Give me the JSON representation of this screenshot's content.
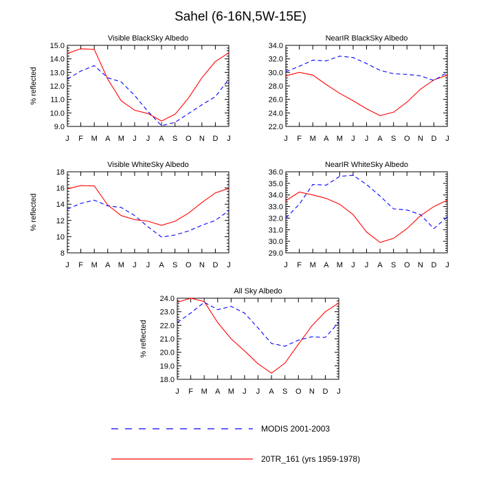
{
  "figure_title": "Sahel (6-16N,5W-15E)",
  "months": [
    "J",
    "F",
    "M",
    "A",
    "M",
    "J",
    "J",
    "A",
    "S",
    "O",
    "N",
    "D",
    "J"
  ],
  "ylabel": "% reflected",
  "colors": {
    "model": "#ff0000",
    "modis": "#0000ff"
  },
  "legend": [
    {
      "label": "MODIS 2001-2003",
      "style": "dashed",
      "color": "#0000ff"
    },
    {
      "label": "20TR_161 (yrs 1959-1978)",
      "style": "solid",
      "color": "#ff0000"
    }
  ],
  "chart_data": [
    {
      "type": "line",
      "title": "Visible BlackSky Albedo",
      "ylabel": "% reflected",
      "ylim": [
        9.0,
        15.0
      ],
      "yticks": [
        "9.0",
        "10.0",
        "11.0",
        "12.0",
        "13.0",
        "14.0",
        "15.0"
      ],
      "ytick_values": [
        9,
        10,
        11,
        12,
        13,
        14,
        15
      ],
      "x": [
        "J",
        "F",
        "M",
        "A",
        "M",
        "J",
        "J",
        "A",
        "S",
        "O",
        "N",
        "D",
        "J"
      ],
      "series": [
        {
          "name": "20TR_161 (yrs 1959-1978)",
          "style": "solid",
          "values": [
            14.4,
            14.75,
            14.7,
            12.5,
            10.9,
            10.2,
            9.95,
            9.4,
            9.9,
            11.1,
            12.6,
            13.8,
            14.45
          ]
        },
        {
          "name": "MODIS 2001-2003",
          "style": "dashed",
          "values": [
            12.5,
            13.1,
            13.5,
            12.6,
            12.3,
            11.3,
            10.1,
            9.05,
            9.3,
            9.95,
            10.6,
            11.2,
            12.5
          ]
        }
      ]
    },
    {
      "type": "line",
      "title": "NearIR BlackSky Albedo",
      "ylabel": "",
      "ylim": [
        22.0,
        34.0
      ],
      "yticks": [
        "22.0",
        "24.0",
        "26.0",
        "28.0",
        "30.0",
        "32.0",
        "34.0"
      ],
      "ytick_values": [
        22,
        24,
        26,
        28,
        30,
        32,
        34
      ],
      "x": [
        "J",
        "F",
        "M",
        "A",
        "M",
        "J",
        "J",
        "A",
        "S",
        "O",
        "N",
        "D",
        "J"
      ],
      "series": [
        {
          "name": "20TR_161 (yrs 1959-1978)",
          "style": "solid",
          "values": [
            29.5,
            30.0,
            29.6,
            28.2,
            26.9,
            25.8,
            24.6,
            23.6,
            24.1,
            25.6,
            27.5,
            28.9,
            29.6
          ]
        },
        {
          "name": "MODIS 2001-2003",
          "style": "dashed",
          "values": [
            30.1,
            30.9,
            31.8,
            31.7,
            32.4,
            32.2,
            31.3,
            30.3,
            29.8,
            29.7,
            29.5,
            28.8,
            30.0
          ]
        }
      ]
    },
    {
      "type": "line",
      "title": "Visible WhiteSky Albedo",
      "ylabel": "% reflected",
      "ylim": [
        8,
        18
      ],
      "yticks": [
        "8",
        "10",
        "12",
        "14",
        "16",
        "18"
      ],
      "ytick_values": [
        8,
        10,
        12,
        14,
        16,
        18
      ],
      "x": [
        "J",
        "F",
        "M",
        "A",
        "M",
        "J",
        "J",
        "A",
        "S",
        "O",
        "N",
        "D",
        "J"
      ],
      "series": [
        {
          "name": "20TR_161 (yrs 1959-1978)",
          "style": "solid",
          "values": [
            15.9,
            16.3,
            16.25,
            13.9,
            12.6,
            12.1,
            11.9,
            11.4,
            11.9,
            12.9,
            14.2,
            15.4,
            15.95
          ]
        },
        {
          "name": "MODIS 2001-2003",
          "style": "dashed",
          "values": [
            13.4,
            14.1,
            14.5,
            13.8,
            13.6,
            12.6,
            11.2,
            9.95,
            10.2,
            10.7,
            11.4,
            12.0,
            13.2
          ]
        }
      ]
    },
    {
      "type": "line",
      "title": "NearIR WhiteSky Albedo",
      "ylabel": "",
      "ylim": [
        29.0,
        36.0
      ],
      "yticks": [
        "29.0",
        "30.0",
        "31.0",
        "32.0",
        "33.0",
        "34.0",
        "35.0",
        "36.0"
      ],
      "ytick_values": [
        29,
        30,
        31,
        32,
        33,
        34,
        35,
        36
      ],
      "x": [
        "J",
        "F",
        "M",
        "A",
        "M",
        "J",
        "J",
        "A",
        "S",
        "O",
        "N",
        "D",
        "J"
      ],
      "series": [
        {
          "name": "20TR_161 (yrs 1959-1978)",
          "style": "solid",
          "values": [
            33.5,
            34.25,
            34.0,
            33.7,
            33.2,
            32.3,
            30.8,
            29.9,
            30.25,
            31.1,
            32.2,
            33.0,
            33.55
          ]
        },
        {
          "name": "MODIS 2001-2003",
          "style": "dashed",
          "values": [
            32.0,
            33.2,
            34.9,
            34.85,
            35.6,
            35.7,
            34.9,
            33.9,
            32.8,
            32.7,
            32.3,
            31.1,
            32.1
          ]
        }
      ]
    },
    {
      "type": "line",
      "title": "All Sky Albedo",
      "ylabel": "% reflected",
      "ylim": [
        18.0,
        24.0
      ],
      "yticks": [
        "18.0",
        "19.0",
        "20.0",
        "21.0",
        "22.0",
        "23.0",
        "24.0"
      ],
      "ytick_values": [
        18,
        19,
        20,
        21,
        22,
        23,
        24
      ],
      "x": [
        "J",
        "F",
        "M",
        "A",
        "M",
        "J",
        "J",
        "A",
        "S",
        "O",
        "N",
        "D",
        "J"
      ],
      "series": [
        {
          "name": "20TR_161 (yrs 1959-1978)",
          "style": "solid",
          "values": [
            23.7,
            24.0,
            23.75,
            22.2,
            21.0,
            20.1,
            19.15,
            18.45,
            19.2,
            20.6,
            21.95,
            23.0,
            23.65
          ]
        },
        {
          "name": "MODIS 2001-2003",
          "style": "dashed",
          "values": [
            22.2,
            22.9,
            23.7,
            23.15,
            23.4,
            22.9,
            21.8,
            20.65,
            20.45,
            20.9,
            21.15,
            21.1,
            22.2
          ]
        }
      ]
    }
  ]
}
